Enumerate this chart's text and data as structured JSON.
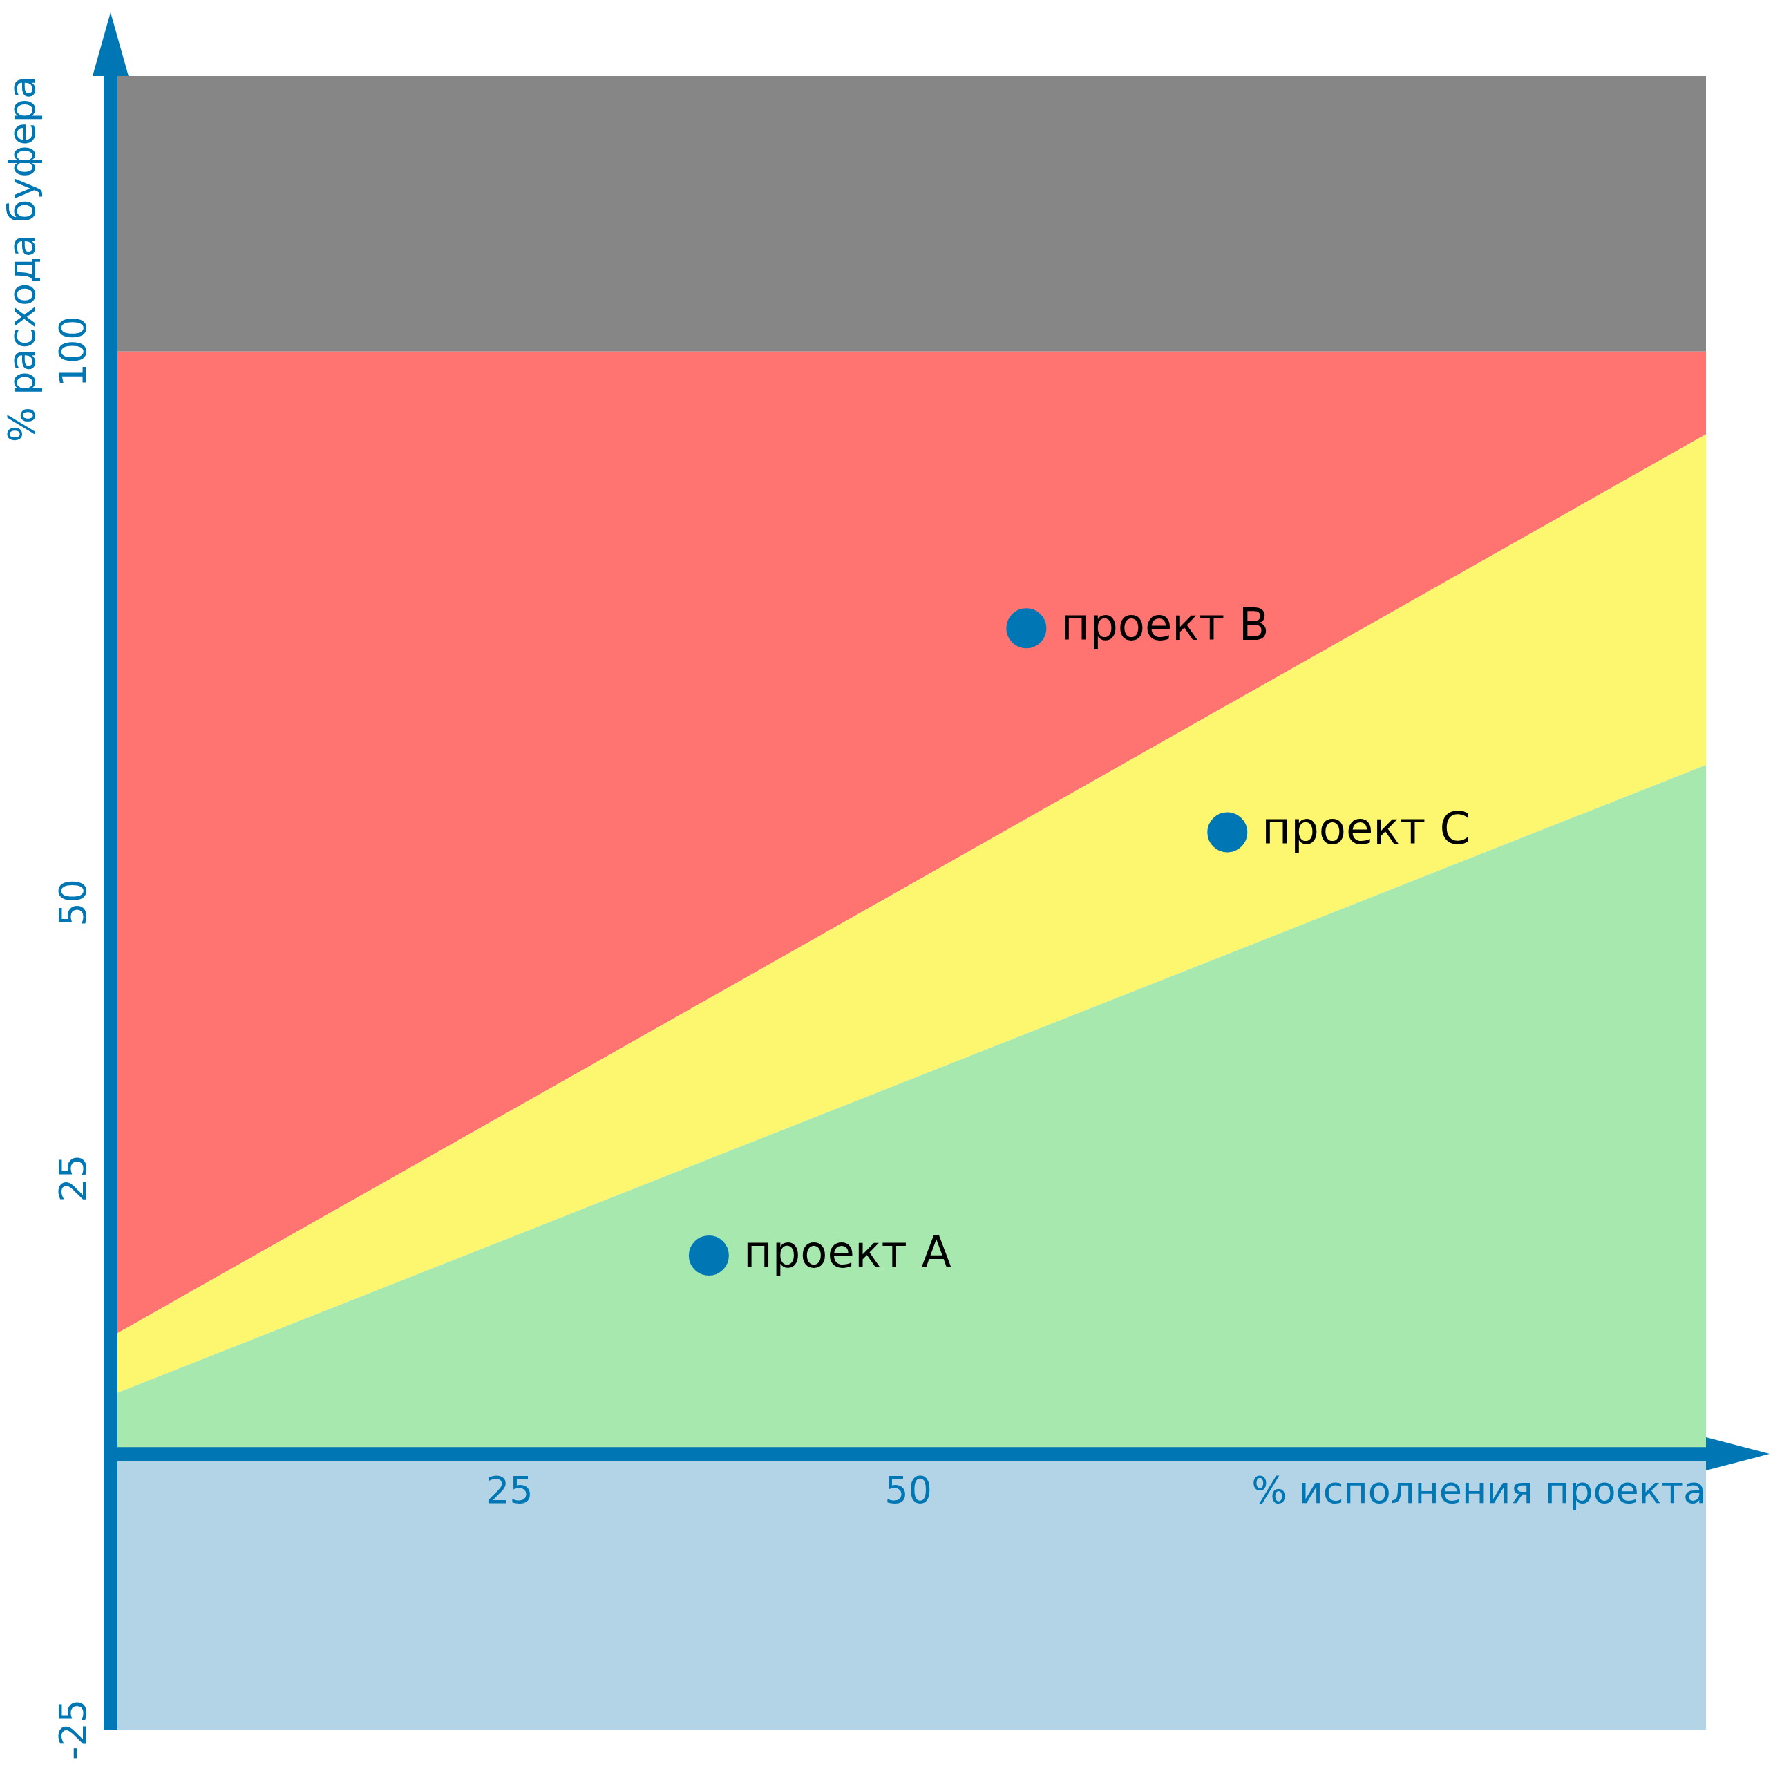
{
  "chart_data": {
    "type": "area",
    "xlabel": "% исполнения проекта",
    "ylabel": "% расхода буфера",
    "xlim": [
      0,
      100
    ],
    "xticks": [
      25,
      50
    ],
    "ylim": [
      -25,
      125
    ],
    "yticks": [
      -25,
      25,
      50,
      100
    ],
    "stacked": true,
    "grid": false,
    "legend": false,
    "bands": [
      {
        "axis": "y",
        "from": 100,
        "to": 125,
        "color": "#868686"
      },
      {
        "axis": "y",
        "from": -25,
        "to": 0,
        "color": "#b3d3e6"
      }
    ],
    "series": [
      {
        "type": "area",
        "color": "#a7e8ae",
        "x": [
          0,
          100
        ],
        "values": [
          5.3,
          62.5
        ]
      },
      {
        "type": "area",
        "color": "#fdf770",
        "x": [
          0,
          100
        ],
        "values": [
          5.3,
          30
        ]
      },
      {
        "type": "area",
        "color": "#ff7370",
        "x": [
          0,
          100
        ],
        "values": [
          89.4,
          7.5
        ]
      },
      {
        "type": "scatter",
        "name": "проект A",
        "color": "#0077b5",
        "marker": "circle",
        "x": [
          37.5
        ],
        "values": [
          18
        ]
      },
      {
        "type": "scatter",
        "name": "проект B",
        "color": "#0077b5",
        "marker": "circle",
        "x": [
          57.4
        ],
        "values": [
          74.9
        ]
      },
      {
        "type": "scatter",
        "name": "проект C",
        "color": "#0077b5",
        "marker": "circle",
        "x": [
          70
        ],
        "values": [
          56.4
        ]
      }
    ]
  }
}
